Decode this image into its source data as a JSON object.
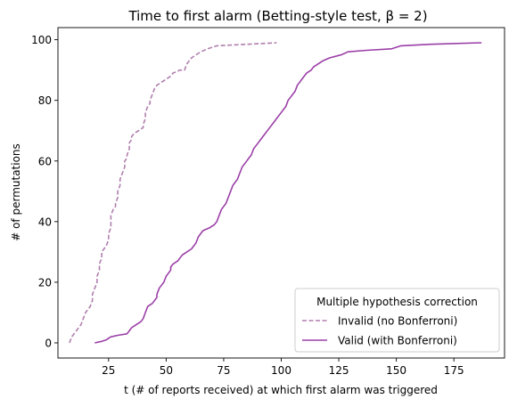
{
  "chart_data": {
    "type": "line",
    "title": "Time to first alarm (Betting-style test, β = 2)",
    "xlabel": "t (# of reports received) at which first alarm was triggered",
    "ylabel": "# of permutations",
    "xlim": [
      3,
      197
    ],
    "ylim": [
      -5,
      104
    ],
    "xticks": [
      25,
      50,
      75,
      100,
      125,
      150,
      175
    ],
    "yticks": [
      0,
      20,
      40,
      60,
      80,
      100
    ],
    "grid": false,
    "legend": {
      "title": "Multiple hypothesis correction",
      "placement": "bottom-right"
    },
    "series": [
      {
        "name": "Invalid (no Bonferroni)",
        "color": "#b07fae",
        "style": "dashed",
        "points": [
          [
            8,
            0
          ],
          [
            9,
            2
          ],
          [
            11,
            4
          ],
          [
            13,
            6
          ],
          [
            14,
            8
          ],
          [
            15,
            10
          ],
          [
            17,
            12
          ],
          [
            18,
            14
          ],
          [
            18,
            16
          ],
          [
            19,
            18
          ],
          [
            20,
            20
          ],
          [
            20,
            22
          ],
          [
            21,
            24
          ],
          [
            21,
            26
          ],
          [
            22,
            28
          ],
          [
            22,
            30
          ],
          [
            23,
            31
          ],
          [
            24,
            32
          ],
          [
            25,
            34
          ],
          [
            25,
            36
          ],
          [
            26,
            38
          ],
          [
            26,
            40
          ],
          [
            26,
            42
          ],
          [
            27,
            44
          ],
          [
            28,
            45
          ],
          [
            28,
            46
          ],
          [
            29,
            48
          ],
          [
            29,
            50
          ],
          [
            30,
            52
          ],
          [
            30,
            54
          ],
          [
            31,
            56
          ],
          [
            32,
            58
          ],
          [
            32,
            60
          ],
          [
            33,
            61
          ],
          [
            33,
            62
          ],
          [
            34,
            64
          ],
          [
            34,
            66
          ],
          [
            35,
            67
          ],
          [
            35,
            68
          ],
          [
            36,
            69
          ],
          [
            38,
            70
          ],
          [
            40,
            71
          ],
          [
            40,
            72
          ],
          [
            41,
            74
          ],
          [
            41,
            76
          ],
          [
            42,
            78
          ],
          [
            43,
            79
          ],
          [
            43,
            80
          ],
          [
            44,
            82
          ],
          [
            45,
            84
          ],
          [
            46,
            85
          ],
          [
            48,
            86
          ],
          [
            50,
            87
          ],
          [
            52,
            88
          ],
          [
            53,
            89
          ],
          [
            56,
            90
          ],
          [
            58,
            90
          ],
          [
            59,
            92
          ],
          [
            60,
            93
          ],
          [
            61,
            94
          ],
          [
            63,
            95
          ],
          [
            65,
            96
          ],
          [
            68,
            97
          ],
          [
            72,
            98
          ],
          [
            85,
            98.5
          ],
          [
            98,
            99
          ]
        ]
      },
      {
        "name": "Valid (with Bonferroni)",
        "color": "#9b3fa7",
        "style": "solid",
        "points": [
          [
            19,
            0
          ],
          [
            22,
            0.5
          ],
          [
            24,
            1
          ],
          [
            26,
            2
          ],
          [
            29,
            2.5
          ],
          [
            33,
            3
          ],
          [
            34,
            4
          ],
          [
            35,
            5
          ],
          [
            37,
            6
          ],
          [
            39,
            7
          ],
          [
            40,
            8
          ],
          [
            41,
            10
          ],
          [
            42,
            12
          ],
          [
            44,
            13
          ],
          [
            45,
            14
          ],
          [
            46,
            15
          ],
          [
            46,
            16
          ],
          [
            47,
            18
          ],
          [
            48,
            19
          ],
          [
            49,
            20
          ],
          [
            50,
            22
          ],
          [
            51,
            23
          ],
          [
            52,
            24
          ],
          [
            52,
            25
          ],
          [
            53,
            26
          ],
          [
            55,
            27
          ],
          [
            56,
            28
          ],
          [
            57,
            29
          ],
          [
            59,
            30
          ],
          [
            61,
            31
          ],
          [
            62,
            32
          ],
          [
            63,
            33
          ],
          [
            64,
            35
          ],
          [
            65,
            36
          ],
          [
            66,
            37
          ],
          [
            69,
            38
          ],
          [
            71,
            39
          ],
          [
            72,
            40
          ],
          [
            73,
            42
          ],
          [
            74,
            44
          ],
          [
            75,
            45
          ],
          [
            76,
            46
          ],
          [
            77,
            48
          ],
          [
            78,
            50
          ],
          [
            79,
            52
          ],
          [
            80,
            53
          ],
          [
            81,
            54
          ],
          [
            82,
            56
          ],
          [
            83,
            58
          ],
          [
            84,
            59
          ],
          [
            85,
            60
          ],
          [
            86,
            61
          ],
          [
            87,
            62
          ],
          [
            88,
            64
          ],
          [
            89,
            65
          ],
          [
            90,
            66
          ],
          [
            91,
            67
          ],
          [
            92,
            68
          ],
          [
            93,
            69
          ],
          [
            94,
            70
          ],
          [
            95,
            71
          ],
          [
            96,
            72
          ],
          [
            97,
            73
          ],
          [
            98,
            74
          ],
          [
            99,
            75
          ],
          [
            100,
            76
          ],
          [
            101,
            77
          ],
          [
            102,
            78
          ],
          [
            103,
            80
          ],
          [
            104,
            81
          ],
          [
            105,
            82
          ],
          [
            106,
            83
          ],
          [
            107,
            85
          ],
          [
            108,
            86
          ],
          [
            109,
            87
          ],
          [
            110,
            88
          ],
          [
            111,
            89
          ],
          [
            113,
            90
          ],
          [
            114,
            91
          ],
          [
            116,
            92
          ],
          [
            118,
            93
          ],
          [
            121,
            94
          ],
          [
            126,
            95
          ],
          [
            129,
            96
          ],
          [
            137,
            96.5
          ],
          [
            148,
            97
          ],
          [
            152,
            98
          ],
          [
            165,
            98.5
          ],
          [
            187,
            99
          ]
        ]
      }
    ]
  }
}
